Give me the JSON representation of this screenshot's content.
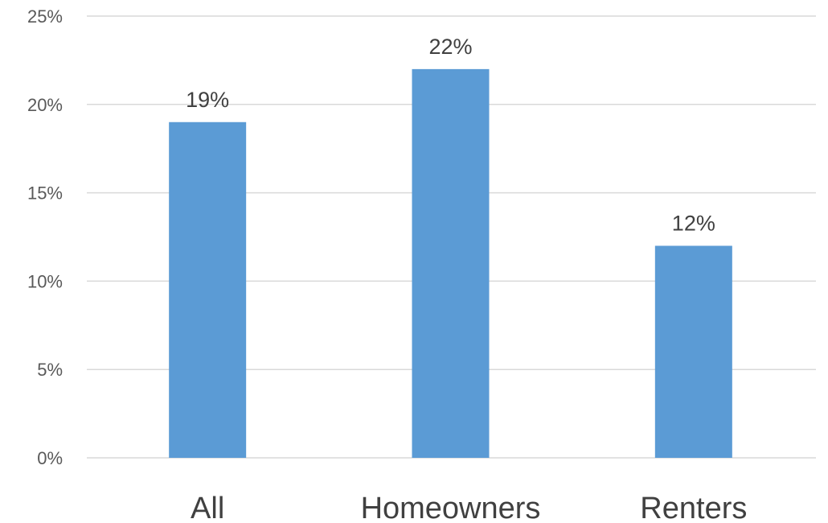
{
  "chart_data": {
    "type": "bar",
    "categories": [
      "All",
      "Homeowners",
      "Renters"
    ],
    "values": [
      19,
      22,
      12
    ],
    "data_labels": [
      "19%",
      "22%",
      "12%"
    ],
    "y_ticks": [
      "0%",
      "5%",
      "10%",
      "15%",
      "20%",
      "25%"
    ],
    "y_tick_values": [
      0,
      5,
      10,
      15,
      20,
      25
    ],
    "ylim": [
      0,
      25
    ],
    "grid": true,
    "legend": "none",
    "bar_color": "#5B9BD5",
    "grid_color": "#D9D9D9"
  }
}
